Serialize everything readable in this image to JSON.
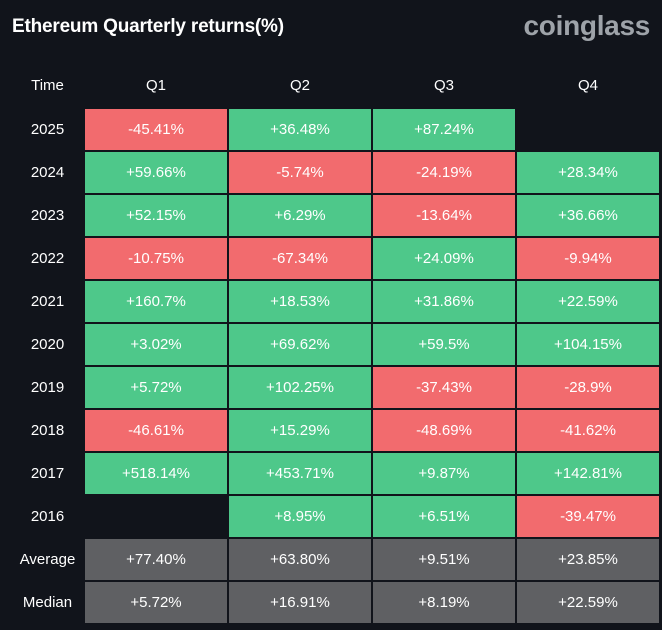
{
  "title": "Ethereum Quarterly returns(%)",
  "brand": "coinglass",
  "colors": {
    "background": "#11141b",
    "positive": "#4ec88a",
    "negative": "#f26b6e",
    "summary": "#5f6063",
    "brand": "#9ea3a9"
  },
  "chart_data": {
    "type": "heatmap",
    "title": "Ethereum Quarterly returns(%)",
    "corner_label": "Time",
    "columns": [
      "Q1",
      "Q2",
      "Q3",
      "Q4"
    ],
    "rows": [
      {
        "label": "2025",
        "cells": [
          "-45.41%",
          "+36.48%",
          "+87.24%",
          ""
        ]
      },
      {
        "label": "2024",
        "cells": [
          "+59.66%",
          "-5.74%",
          "-24.19%",
          "+28.34%"
        ]
      },
      {
        "label": "2023",
        "cells": [
          "+52.15%",
          "+6.29%",
          "-13.64%",
          "+36.66%"
        ]
      },
      {
        "label": "2022",
        "cells": [
          "-10.75%",
          "-67.34%",
          "+24.09%",
          "-9.94%"
        ]
      },
      {
        "label": "2021",
        "cells": [
          "+160.7%",
          "+18.53%",
          "+31.86%",
          "+22.59%"
        ]
      },
      {
        "label": "2020",
        "cells": [
          "+3.02%",
          "+69.62%",
          "+59.5%",
          "+104.15%"
        ]
      },
      {
        "label": "2019",
        "cells": [
          "+5.72%",
          "+102.25%",
          "-37.43%",
          "-28.9%"
        ]
      },
      {
        "label": "2018",
        "cells": [
          "-46.61%",
          "+15.29%",
          "-48.69%",
          "-41.62%"
        ]
      },
      {
        "label": "2017",
        "cells": [
          "+518.14%",
          "+453.71%",
          "+9.87%",
          "+142.81%"
        ]
      },
      {
        "label": "2016",
        "cells": [
          "",
          "+8.95%",
          "+6.51%",
          "-39.47%"
        ]
      }
    ],
    "summary": [
      {
        "label": "Average",
        "cells": [
          "+77.40%",
          "+63.80%",
          "+9.51%",
          "+23.85%"
        ]
      },
      {
        "label": "Median",
        "cells": [
          "+5.72%",
          "+16.91%",
          "+8.19%",
          "+22.59%"
        ]
      }
    ]
  }
}
